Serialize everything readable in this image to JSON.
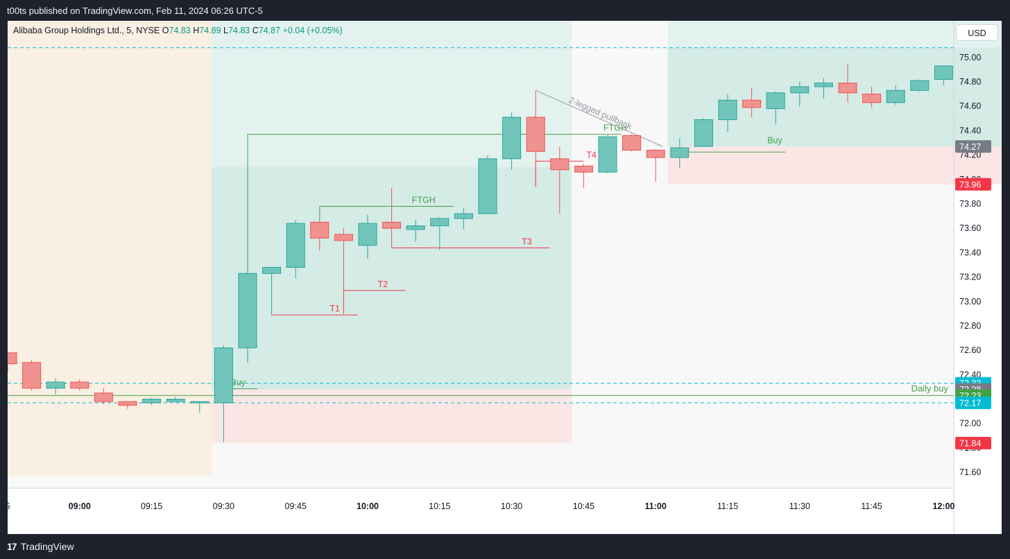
{
  "header": {
    "publish_text": "t00ts published on TradingView.com, Feb 11, 2024 06:26 UTC-5"
  },
  "footer": {
    "brand_label": "TradingView",
    "brand_logo": "17"
  },
  "legend": {
    "symbol_text": "Alibaba Group Holdings Ltd., 5, NYSE",
    "o_label": "O",
    "o_value": "74.83",
    "h_label": "H",
    "h_value": "74.89",
    "l_label": "L",
    "l_value": "74.83",
    "c_label": "C",
    "c_value": "74.87",
    "change": "+0.04 (+0.05%)"
  },
  "currency_button": "USD",
  "colors": {
    "up": "#26a69a",
    "down": "#ef5350",
    "up_fill": "#71c5bb",
    "down_fill": "#f0928f",
    "accent_green": "#43a047",
    "cyan": "#00bcd4"
  },
  "chart_data": {
    "type": "candlestick",
    "title": "",
    "symbol": "Alibaba Group Holdings Ltd.",
    "interval": "5",
    "exchange": "NYSE",
    "currency": "USD",
    "ylim": [
      71.47,
      75.3
    ],
    "y_ticks": [
      "71.60",
      "71.80",
      "72.00",
      "72.20",
      "72.40",
      "72.60",
      "72.80",
      "73.00",
      "73.20",
      "73.40",
      "73.60",
      "73.80",
      "74.00",
      "74.20",
      "74.40",
      "74.60",
      "74.80",
      "75.00"
    ],
    "x_ticks": [
      {
        "t": "08:45",
        "label": "5",
        "bold": false
      },
      {
        "t": "09:00",
        "label": "09:00",
        "bold": true
      },
      {
        "t": "09:15",
        "label": "09:15",
        "bold": false
      },
      {
        "t": "09:30",
        "label": "09:30",
        "bold": false
      },
      {
        "t": "09:45",
        "label": "09:45",
        "bold": false
      },
      {
        "t": "10:00",
        "label": "10:00",
        "bold": true
      },
      {
        "t": "10:15",
        "label": "10:15",
        "bold": false
      },
      {
        "t": "10:30",
        "label": "10:30",
        "bold": false
      },
      {
        "t": "10:45",
        "label": "10:45",
        "bold": false
      },
      {
        "t": "11:00",
        "label": "11:00",
        "bold": true
      },
      {
        "t": "11:15",
        "label": "11:15",
        "bold": false
      },
      {
        "t": "11:30",
        "label": "11:30",
        "bold": false
      },
      {
        "t": "11:45",
        "label": "11:45",
        "bold": false
      },
      {
        "t": "12:00",
        "label": "12:00",
        "bold": true
      }
    ],
    "candles": [
      {
        "t": "08:45",
        "o": 72.58,
        "h": 72.58,
        "l": 72.42,
        "c": 72.49
      },
      {
        "t": "08:50",
        "o": 72.5,
        "h": 72.52,
        "l": 72.27,
        "c": 72.29
      },
      {
        "t": "08:55",
        "o": 72.29,
        "h": 72.37,
        "l": 72.24,
        "c": 72.34
      },
      {
        "t": "09:00",
        "o": 72.34,
        "h": 72.36,
        "l": 72.27,
        "c": 72.29
      },
      {
        "t": "09:05",
        "o": 72.25,
        "h": 72.29,
        "l": 72.16,
        "c": 72.18
      },
      {
        "t": "09:10",
        "o": 72.18,
        "h": 72.18,
        "l": 72.12,
        "c": 72.15
      },
      {
        "t": "09:15",
        "o": 72.17,
        "h": 72.21,
        "l": 72.15,
        "c": 72.2
      },
      {
        "t": "09:20",
        "o": 72.18,
        "h": 72.22,
        "l": 72.17,
        "c": 72.2
      },
      {
        "t": "09:25",
        "o": 72.17,
        "h": 72.18,
        "l": 72.09,
        "c": 72.18
      },
      {
        "t": "09:30",
        "o": 72.17,
        "h": 72.64,
        "l": 71.85,
        "c": 72.62
      },
      {
        "t": "09:35",
        "o": 72.62,
        "h": 73.25,
        "l": 72.5,
        "c": 73.23
      },
      {
        "t": "09:40",
        "o": 73.23,
        "h": 73.28,
        "l": 72.9,
        "c": 73.28
      },
      {
        "t": "09:45",
        "o": 73.28,
        "h": 73.67,
        "l": 73.19,
        "c": 73.64
      },
      {
        "t": "09:50",
        "o": 73.65,
        "h": 73.65,
        "l": 73.42,
        "c": 73.52
      },
      {
        "t": "09:55",
        "o": 73.55,
        "h": 73.6,
        "l": 72.9,
        "c": 73.5
      },
      {
        "t": "10:00",
        "o": 73.46,
        "h": 73.71,
        "l": 73.35,
        "c": 73.64
      },
      {
        "t": "10:05",
        "o": 73.65,
        "h": 73.93,
        "l": 73.44,
        "c": 73.6
      },
      {
        "t": "10:10",
        "o": 73.59,
        "h": 73.67,
        "l": 73.49,
        "c": 73.62
      },
      {
        "t": "10:15",
        "o": 73.62,
        "h": 73.69,
        "l": 73.42,
        "c": 73.68
      },
      {
        "t": "10:20",
        "o": 73.68,
        "h": 73.77,
        "l": 73.59,
        "c": 73.72
      },
      {
        "t": "10:25",
        "o": 73.72,
        "h": 74.2,
        "l": 73.72,
        "c": 74.17
      },
      {
        "t": "10:30",
        "o": 74.17,
        "h": 74.55,
        "l": 74.08,
        "c": 74.51
      },
      {
        "t": "10:35",
        "o": 74.51,
        "h": 74.73,
        "l": 73.94,
        "c": 74.23
      },
      {
        "t": "10:40",
        "o": 74.17,
        "h": 74.27,
        "l": 73.72,
        "c": 74.08
      },
      {
        "t": "10:45",
        "o": 74.11,
        "h": 74.13,
        "l": 73.93,
        "c": 74.06
      },
      {
        "t": "10:50",
        "o": 74.06,
        "h": 74.37,
        "l": 74.05,
        "c": 74.35
      },
      {
        "t": "10:55",
        "o": 74.36,
        "h": 74.37,
        "l": 74.23,
        "c": 74.24
      },
      {
        "t": "11:00",
        "o": 74.24,
        "h": 74.25,
        "l": 73.98,
        "c": 74.18
      },
      {
        "t": "11:05",
        "o": 74.18,
        "h": 74.34,
        "l": 74.09,
        "c": 74.26
      },
      {
        "t": "11:10",
        "o": 74.27,
        "h": 74.5,
        "l": 74.27,
        "c": 74.49
      },
      {
        "t": "11:15",
        "o": 74.49,
        "h": 74.7,
        "l": 74.39,
        "c": 74.65
      },
      {
        "t": "11:20",
        "o": 74.65,
        "h": 74.75,
        "l": 74.51,
        "c": 74.59
      },
      {
        "t": "11:25",
        "o": 74.58,
        "h": 74.72,
        "l": 74.45,
        "c": 74.71
      },
      {
        "t": "11:30",
        "o": 74.71,
        "h": 74.8,
        "l": 74.6,
        "c": 74.76
      },
      {
        "t": "11:35",
        "o": 74.76,
        "h": 74.83,
        "l": 74.66,
        "c": 74.79
      },
      {
        "t": "11:40",
        "o": 74.79,
        "h": 74.95,
        "l": 74.63,
        "c": 74.71
      },
      {
        "t": "11:45",
        "o": 74.7,
        "h": 74.76,
        "l": 74.59,
        "c": 74.63
      },
      {
        "t": "11:50",
        "o": 74.63,
        "h": 74.77,
        "l": 74.61,
        "c": 74.73
      },
      {
        "t": "11:55",
        "o": 74.73,
        "h": 74.82,
        "l": 74.72,
        "c": 74.81
      },
      {
        "t": "12:00",
        "o": 74.82,
        "h": 74.93,
        "l": 74.77,
        "c": 74.93
      }
    ],
    "price_labels": [
      {
        "value": 74.27,
        "text": "74.27",
        "bg": "#787b86"
      },
      {
        "value": 73.96,
        "text": "73.96",
        "bg": "#f23645"
      },
      {
        "value": 72.33,
        "text": "72.33",
        "bg": "#00bcd4"
      },
      {
        "value": 72.28,
        "text": "72.28",
        "bg": "#787b86"
      },
      {
        "value": 72.23,
        "text": "72.23",
        "bg": "#43a047"
      },
      {
        "value": 72.17,
        "text": "72.17",
        "bg": "#00bcd4"
      },
      {
        "value": 71.84,
        "text": "71.84",
        "bg": "#f23645"
      }
    ],
    "horizontal_lines": [
      {
        "value": 75.08,
        "style": "dashed",
        "color": "#00bcd4"
      },
      {
        "value": 72.33,
        "style": "dashed",
        "color": "#00bcd4"
      },
      {
        "value": 72.17,
        "style": "dashed",
        "color": "#00bcd4"
      },
      {
        "value": 72.23,
        "style": "solid",
        "color": "#43a047",
        "label": "Daily buy"
      }
    ],
    "zones": [
      {
        "type": "premarket",
        "t0": "08:45",
        "t1": "09:25",
        "y0": 71.57,
        "y1": 75.3,
        "color": "#f9efe2"
      },
      {
        "type": "profit",
        "t0": "09:30",
        "t1": "10:40",
        "y0": 72.28,
        "y1": 75.3,
        "color": "#e3f2ef"
      },
      {
        "type": "profit",
        "t0": "09:30",
        "t1": "10:40",
        "y0": 72.28,
        "y1": 74.1,
        "color": "#d4ebe6"
      },
      {
        "type": "loss",
        "t0": "09:30",
        "t1": "10:40",
        "y0": 71.84,
        "y1": 72.28,
        "color": "#fbe6e6"
      },
      {
        "type": "profit",
        "t0": "11:05",
        "t1": "12:10",
        "y0": 74.27,
        "y1": 75.3,
        "color": "#e3f2ef"
      },
      {
        "type": "profit",
        "t0": "11:05",
        "t1": "12:10",
        "y0": 74.27,
        "y1": 75.08,
        "color": "#d4ebe6"
      },
      {
        "type": "loss",
        "t0": "11:05",
        "t1": "12:10",
        "y0": 73.96,
        "y1": 74.27,
        "color": "#fbe6e6"
      }
    ],
    "annotations": [
      {
        "text": "Buy",
        "color": "#43a047",
        "t": "09:30",
        "y": 72.33,
        "line_to": "09:35"
      },
      {
        "text": "Buy",
        "color": "#43a047",
        "t": "11:05",
        "y": 74.27,
        "line_to": "11:25"
      },
      {
        "text": "FTGH",
        "color": "#43a047",
        "t0": "09:50",
        "t1": "10:15",
        "y": 73.78
      },
      {
        "text": "FTGH",
        "color": "#43a047",
        "t0": "09:35",
        "t1": "10:50",
        "y": 74.37
      },
      {
        "text": "T1",
        "color": "#f23645",
        "t0": "09:40",
        "t1": "09:55",
        "y": 72.89
      },
      {
        "text": "T2",
        "color": "#f23645",
        "t0": "09:55",
        "t1": "10:05",
        "y": 73.09
      },
      {
        "text": "T3",
        "color": "#f23645",
        "t0": "10:05",
        "t1": "10:35",
        "y": 73.44
      },
      {
        "text": "T4",
        "color": "#f23645",
        "t0": "10:35",
        "t1": "10:45",
        "y": 74.15
      },
      {
        "text": "2-legged pullback",
        "color": "#9598a1",
        "t0": "10:35",
        "t1": "11:00",
        "y0": 74.73,
        "y1": 74.27
      }
    ]
  }
}
